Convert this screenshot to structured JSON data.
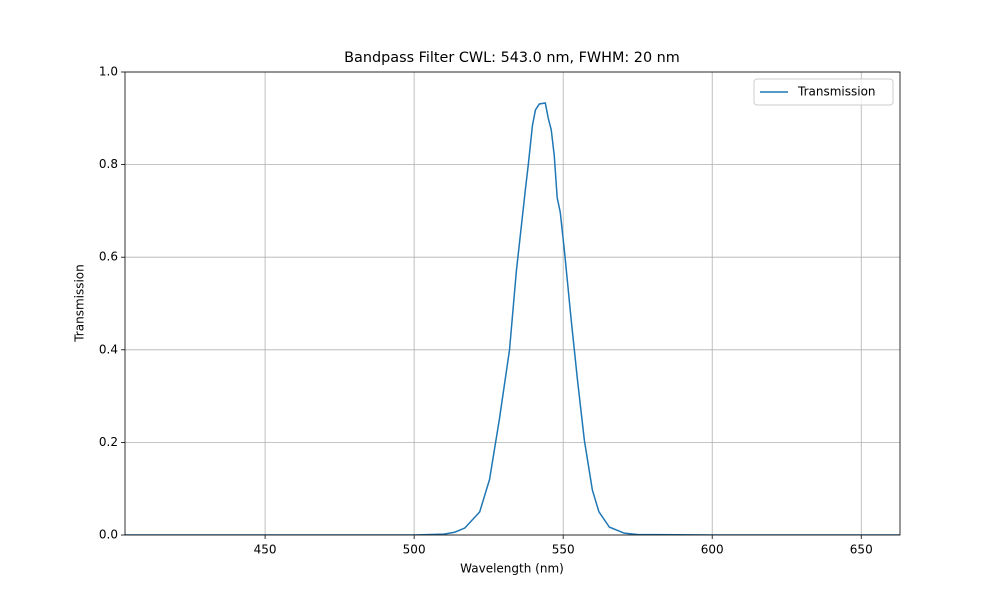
{
  "chart_data": {
    "type": "line",
    "title": "Bandpass Filter CWL: 543.0 nm, FWHM: 20 nm",
    "x_label": "Wavelength (nm)",
    "y_label": "Transmission",
    "x": [
      403,
      450,
      500,
      510,
      513.6,
      517,
      522,
      525.3,
      528.6,
      532,
      534.3,
      537.3,
      538.3,
      539.7,
      540.7,
      542,
      544,
      545,
      546,
      547,
      548,
      549,
      550.4,
      552.7,
      554.8,
      557.1,
      559.8,
      562,
      565.5,
      570.5,
      575,
      600,
      663
    ],
    "series": [
      {
        "name": "Transmission",
        "color": "#1f77b4",
        "values": [
          0,
          0,
          0,
          0.002,
          0.006,
          0.015,
          0.05,
          0.12,
          0.25,
          0.4,
          0.57,
          0.745,
          0.8,
          0.885,
          0.918,
          0.931,
          0.933,
          0.9,
          0.875,
          0.82,
          0.728,
          0.698,
          0.615,
          0.464,
          0.335,
          0.205,
          0.097,
          0.05,
          0.017,
          0.004,
          0.001,
          0,
          0
        ]
      }
    ],
    "xlim": [
      403,
      663
    ],
    "ylim": [
      0,
      1.0
    ],
    "xticks": [
      450,
      500,
      550,
      600,
      650
    ],
    "yticks": [
      {
        "value": 0,
        "label": "0.0"
      },
      {
        "value": 0.2,
        "label": "0.2"
      },
      {
        "value": 0.4,
        "label": "0.4"
      },
      {
        "value": 0.6,
        "label": "0.6"
      },
      {
        "value": 0.8,
        "label": "0.8"
      },
      {
        "value": 1.0,
        "label": "1.0"
      }
    ],
    "grid": true,
    "legend": "upper right"
  }
}
